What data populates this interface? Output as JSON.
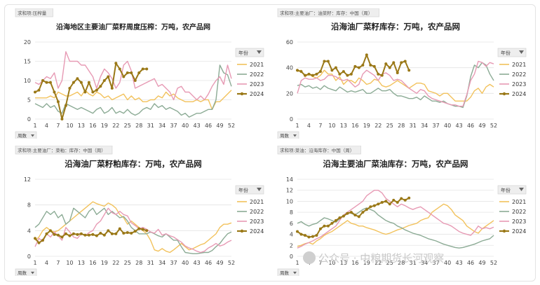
{
  "watermark": "公众号 · 中粮期货长河观察",
  "colors": {
    "2021": "#f2c25c",
    "2022": "#8cab95",
    "2023": "#e79ab4",
    "2024": "#9a7817"
  },
  "chart_data": [
    {
      "type": "line",
      "tag": "求和项:压榨量",
      "title": "沿海地区主要油厂菜籽周度压榨：万吨，农产品网",
      "x_ticks": [
        "1",
        "4",
        "7",
        "10",
        "13",
        "16",
        "19",
        "22",
        "25",
        "28",
        "31",
        "34",
        "37",
        "40",
        "43",
        "46",
        "49",
        "52"
      ],
      "ylim": [
        0,
        20
      ],
      "y_ticks": [
        0,
        5,
        10,
        15,
        20
      ],
      "legend_title": "年份",
      "filter_label": "周数",
      "series": [
        {
          "name": "2021",
          "values": [
            5.5,
            5.5,
            5.5,
            5.5,
            6,
            5.5,
            7,
            6.5,
            6,
            6,
            6.5,
            7,
            6,
            7.5,
            6.5,
            6,
            7,
            6.5,
            5.5,
            6,
            5,
            5.5,
            6,
            6.5,
            5,
            6,
            5,
            5.5,
            4.5,
            4.5,
            5,
            5,
            6,
            5.5,
            7,
            6,
            6.5,
            5.5,
            5,
            4.5,
            4.5,
            4.5,
            5,
            4.5,
            5,
            5,
            2.5,
            4.5,
            4.5,
            5.5,
            6.5,
            7.5
          ]
        },
        {
          "name": "2022",
          "values": [
            4,
            3.5,
            3,
            4,
            3,
            3.5,
            2,
            1.5,
            4,
            3.5,
            3,
            2.5,
            3,
            2.5,
            2,
            1.5,
            2.5,
            3,
            1.5,
            2,
            3,
            1.5,
            2,
            1.5,
            2.5,
            1.5,
            1,
            1.5,
            2.5,
            3,
            2.5,
            4,
            3,
            3.5,
            2.5,
            3,
            2.5,
            2,
            1,
            1.5,
            0.5,
            1,
            1.5,
            1.5,
            2,
            2.5,
            2.5,
            5,
            14,
            12,
            11.5,
            8.5
          ]
        },
        {
          "name": "2023",
          "values": [
            9.5,
            9,
            10,
            11,
            10.5,
            12,
            8,
            10,
            17.5,
            15,
            15,
            15,
            14,
            14,
            12.5,
            11,
            8,
            11,
            13,
            12,
            10.5,
            8,
            9.5,
            14,
            15,
            12.5,
            8,
            8.5,
            9,
            9.5,
            10,
            10.5,
            8.5,
            9,
            8,
            7,
            5,
            8,
            8.5,
            7,
            7,
            6,
            5,
            6,
            5,
            6.5,
            8.5,
            10,
            11,
            9,
            14,
            10.5
          ]
        },
        {
          "name": "2024",
          "values": [
            7,
            7.5,
            10,
            9.5,
            9.5,
            7,
            4.5,
            0,
            3.5,
            8,
            9.5,
            10.5,
            9.5,
            7,
            9.5,
            7,
            7.5,
            8.5,
            10,
            11,
            8,
            14.5,
            13,
            11,
            12,
            12,
            10,
            12,
            13,
            13
          ]
        }
      ]
    },
    {
      "type": "line",
      "tag": "求和项:主要油厂：油菜籽：库存：中国（周）",
      "title": "沿海油厂菜籽库存：万吨，农产品网",
      "x_ticks": [
        "1",
        "4",
        "7",
        "10",
        "13",
        "16",
        "19",
        "22",
        "25",
        "28",
        "31",
        "34",
        "37",
        "40",
        "43",
        "46",
        "49",
        "52"
      ],
      "ylim": [
        0,
        60
      ],
      "y_ticks": [
        0,
        20,
        40,
        60
      ],
      "legend_title": "年份",
      "filter_label": "周数",
      "series": [
        {
          "name": "2021",
          "values": [
            37,
            38,
            33,
            35,
            33,
            32,
            34,
            38,
            35,
            35,
            30,
            33,
            27,
            30,
            30,
            28,
            32,
            30,
            27,
            28,
            31,
            30,
            26,
            25,
            26,
            28,
            30,
            28,
            26,
            24,
            26,
            28,
            28,
            27,
            22,
            21,
            20,
            18,
            20,
            20,
            17,
            14,
            14,
            14,
            14,
            17,
            22,
            24,
            20,
            25,
            27,
            25
          ]
        },
        {
          "name": "2022",
          "values": [
            26,
            27,
            25,
            26,
            24,
            25,
            23,
            26,
            24,
            23,
            22,
            25,
            23,
            21,
            22,
            21,
            22,
            23,
            20,
            20,
            22,
            24,
            22,
            22,
            23,
            20,
            18,
            18,
            17,
            16,
            16,
            17,
            15,
            18,
            16,
            14,
            14,
            13,
            14,
            12,
            11,
            10,
            10,
            9,
            18,
            33,
            42,
            40,
            44,
            42,
            35,
            30
          ]
        },
        {
          "name": "2023",
          "values": [
            20,
            30,
            32,
            31,
            31,
            32,
            30,
            31,
            34,
            34,
            33,
            31,
            30,
            31,
            28,
            25,
            27,
            35,
            38,
            36,
            34,
            30,
            35,
            36,
            34,
            30,
            31,
            30,
            27,
            24,
            22,
            20,
            23,
            22,
            18,
            16,
            15,
            14,
            13,
            12,
            11,
            11,
            10,
            10,
            19,
            30,
            35,
            45,
            44,
            41,
            44,
            43
          ]
        },
        {
          "name": "2024",
          "values": [
            38,
            37,
            34,
            35,
            34,
            35,
            37,
            45,
            45,
            38,
            40,
            35,
            37,
            34,
            35,
            41,
            40,
            42,
            50,
            42,
            41,
            35,
            34,
            43,
            40,
            44,
            36,
            44,
            45,
            38
          ]
        }
      ]
    },
    {
      "type": "line",
      "tag": "求和项:主要油厂：菜粕：库存：中国（周）",
      "title": "沿海油厂菜籽粕库存：万吨，农产品网",
      "x_ticks": [
        "1",
        "4",
        "7",
        "10",
        "13",
        "16",
        "19",
        "22",
        "25",
        "28",
        "31",
        "34",
        "37",
        "40",
        "43",
        "46",
        "49",
        "52"
      ],
      "ylim": [
        0,
        12
      ],
      "y_ticks": [
        0,
        4,
        8,
        12
      ],
      "legend_title": "年份",
      "filter_label": "周数",
      "series": [
        {
          "name": "2021",
          "values": [
            2.5,
            3,
            4,
            4.5,
            4,
            3.8,
            4,
            4.5,
            5,
            5.5,
            6,
            6.5,
            7,
            7.5,
            8,
            8.5,
            8.2,
            8,
            7.8,
            8.3,
            8,
            7.5,
            6.5,
            6,
            5,
            5.5,
            5,
            4.5,
            4,
            3.5,
            2.5,
            1,
            0.8,
            1.2,
            0.8,
            0.6,
            1,
            1.5,
            2,
            1.5,
            1,
            1.2,
            1.5,
            1.8,
            2,
            2.5,
            3,
            3.5,
            4.5,
            5,
            5,
            5.2
          ]
        },
        {
          "name": "2022",
          "values": [
            4.5,
            5,
            6,
            7,
            6.5,
            7,
            6,
            6.5,
            5,
            5.5,
            7.5,
            7,
            6.5,
            6,
            7,
            7.5,
            6.5,
            7,
            7.5,
            6.5,
            7,
            6.5,
            6,
            6.2,
            5.5,
            4.5,
            4,
            3.5,
            3.5,
            3.5,
            3.8,
            3.5,
            3.2,
            3,
            3.5,
            3,
            2.5,
            2.5,
            1.5,
            0.6,
            0.5,
            0.4,
            0.4,
            0.5,
            0.6,
            0.6,
            0.9,
            1.5,
            2,
            2.8,
            3.5,
            3.8
          ]
        },
        {
          "name": "2023",
          "values": [
            1.5,
            2.8,
            2.3,
            3.5,
            3,
            3.8,
            3.2,
            2.5,
            4.5,
            3.8,
            3,
            2.8,
            3.5,
            3.2,
            3.7,
            4,
            5,
            5.5,
            6.5,
            7.5,
            6.8,
            6.5,
            7,
            6.5,
            6.3,
            5.2,
            4.8,
            4.3,
            4.5,
            4.2,
            3.8,
            3.6,
            4.2,
            3.3,
            3.5,
            3.2,
            3,
            2.6,
            2.2,
            1.6,
            1.3,
            1.1,
            0.8,
            0.6,
            0.8,
            1.3,
            1.6,
            2,
            1.6,
            1.8,
            2.2,
            2.5
          ]
        },
        {
          "name": "2024",
          "values": [
            2.8,
            2.1,
            2.5,
            3.5,
            4,
            3.4,
            3.3,
            3,
            3.5,
            3.2,
            3.5,
            3.4,
            3.5,
            3.3,
            3.3,
            3.4,
            3.2,
            3.6,
            3.3,
            4,
            3.5,
            3.5,
            4.3,
            3.6,
            3.7,
            3.6,
            3.9,
            4.3,
            4.2,
            4
          ]
        }
      ]
    },
    {
      "type": "line",
      "tag": "求和项:菜油：沿海库存：中国（周）",
      "title": "沿海主要油厂菜油库存：万吨，农产品网",
      "x_ticks": [
        "1",
        "4",
        "7",
        "10",
        "13",
        "16",
        "19",
        "22",
        "25",
        "28",
        "31",
        "34",
        "37",
        "40",
        "43",
        "46",
        "49",
        "52"
      ],
      "ylim": [
        0,
        14
      ],
      "y_ticks": [
        0,
        2,
        4,
        6,
        8,
        10,
        12,
        14
      ],
      "legend_title": "年份",
      "filter_label": "周数",
      "series": [
        {
          "name": "2021",
          "values": [
            1.8,
            2,
            2.3,
            2.5,
            2.2,
            2.8,
            3.2,
            3.8,
            4.2,
            4.5,
            5,
            5.5,
            6,
            6.5,
            6,
            5.8,
            5.5,
            5.5,
            5.2,
            5,
            4.8,
            4.5,
            4.2,
            4,
            4.2,
            4.5,
            4.8,
            5,
            5.3,
            5.6,
            5.8,
            6,
            6.5,
            6.8,
            7,
            8,
            8.5,
            9,
            9.5,
            9.2,
            8.5,
            7.5,
            7,
            6.5,
            5.5,
            5,
            4.5,
            4.2,
            5,
            5.5,
            6,
            6.5
          ]
        },
        {
          "name": "2022",
          "values": [
            6,
            6.3,
            5.8,
            5.5,
            5.8,
            6,
            6.5,
            7,
            6.8,
            6.5,
            6.2,
            6.8,
            7.5,
            8,
            7.8,
            7.5,
            8,
            8.5,
            8.8,
            8.5,
            8.2,
            7.5,
            7,
            6.5,
            6.2,
            6,
            5.5,
            5.2,
            4.8,
            4.5,
            4.2,
            4,
            3.8,
            3.5,
            3.2,
            3,
            2.8,
            2.5,
            2.2,
            2,
            1.8,
            1.6,
            1.5,
            1.6,
            1.8,
            2,
            2.2,
            2.5,
            2.8,
            3,
            3.2,
            3.8
          ]
        },
        {
          "name": "2023",
          "values": [
            1.5,
            1.8,
            2.2,
            2.5,
            2.8,
            3.2,
            3.5,
            4,
            4.5,
            5,
            5.5,
            6.5,
            7.5,
            8,
            8.5,
            9,
            9.5,
            10,
            11,
            11.5,
            12,
            12,
            11.5,
            10.5,
            10,
            9.5,
            9,
            9.5,
            9.2,
            8.8,
            8.5,
            8.8,
            9,
            8.5,
            8,
            7.5,
            7,
            6.5,
            6,
            5.8,
            5.5,
            5,
            4.5,
            4.2,
            4,
            3.8,
            4.5,
            5.5,
            5,
            5.2,
            5,
            5.3
          ]
        },
        {
          "name": "2024",
          "values": [
            4.5,
            4,
            3.8,
            3.5,
            3.6,
            3.8,
            5,
            5.5,
            5.5,
            6,
            6.5,
            7,
            7.3,
            7.8,
            8,
            7.5,
            7.2,
            8,
            8.5,
            9,
            9.2,
            9.5,
            9.8,
            10,
            9.5,
            10.2,
            9.8,
            10.5,
            10.2,
            10.6
          ]
        }
      ]
    }
  ]
}
